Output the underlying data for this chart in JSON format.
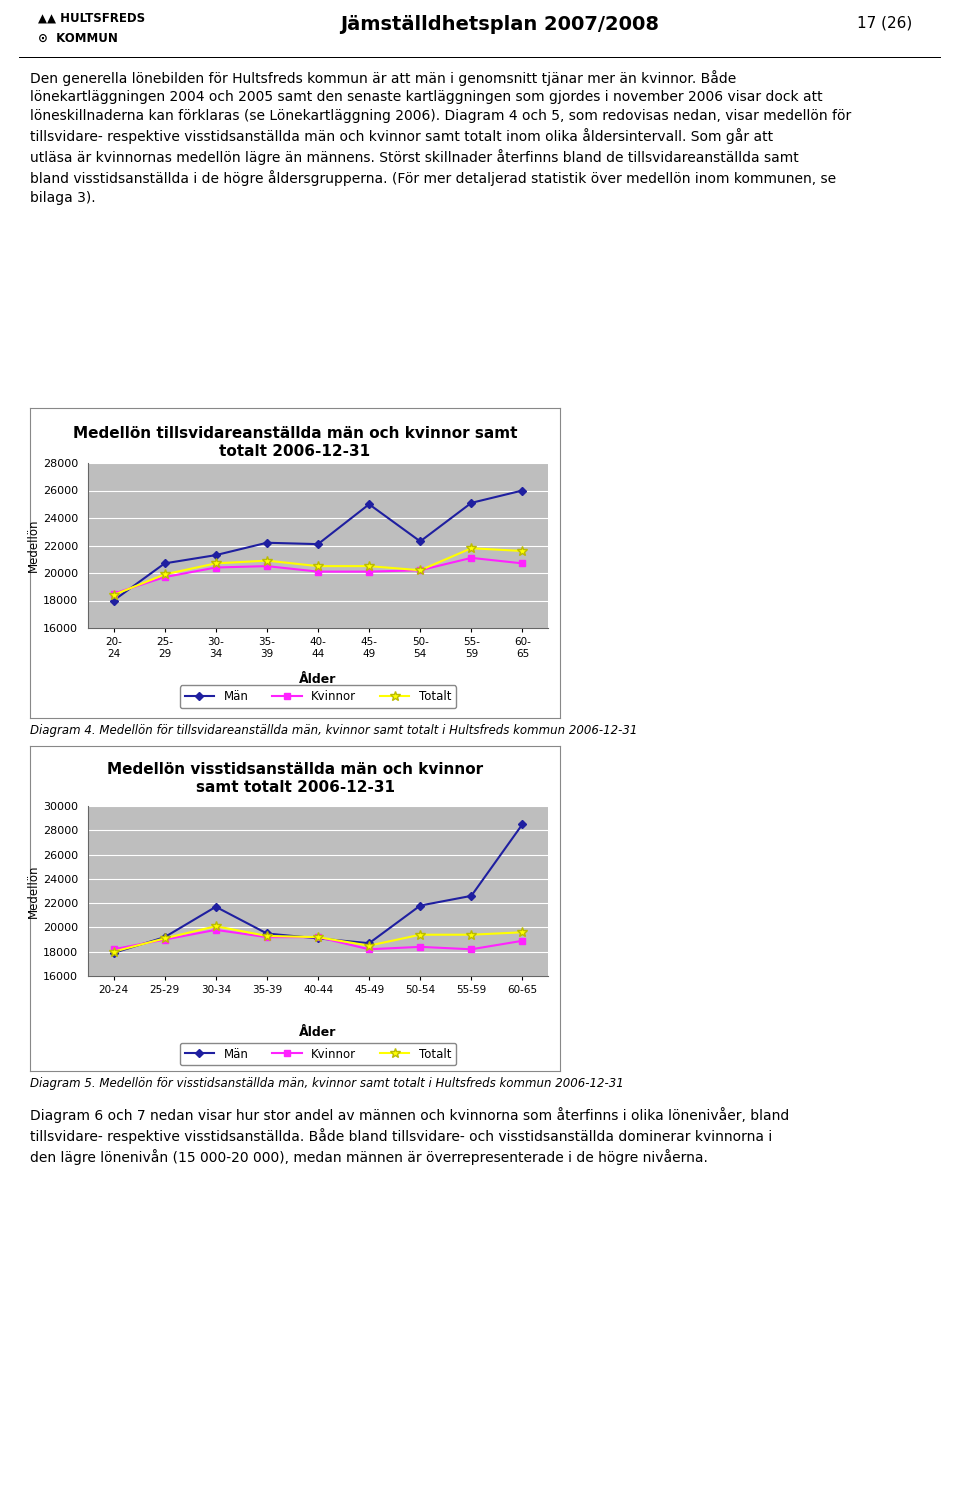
{
  "chart1": {
    "title_line1": "Medellön tillsvidareanställda män och kvinnor samt",
    "title_line2": "totalt 2006-12-31",
    "categories": [
      "20-\n24",
      "25-\n29",
      "30-\n34",
      "35-\n39",
      "40-\n44",
      "45-\n49",
      "50-\n54",
      "55-\n59",
      "60-\n65"
    ],
    "man": [
      18000,
      20700,
      21300,
      22200,
      22100,
      25000,
      22300,
      25100,
      26000
    ],
    "kvinnor": [
      18500,
      19700,
      20400,
      20500,
      20100,
      20100,
      20200,
      21100,
      20700
    ],
    "totalt": [
      18400,
      19900,
      20700,
      20900,
      20500,
      20500,
      20200,
      21800,
      21600
    ],
    "ylim": [
      16000,
      28000
    ],
    "yticks": [
      16000,
      18000,
      20000,
      22000,
      24000,
      26000,
      28000
    ],
    "ylabel": "Medellön",
    "xlabel": "Ålder",
    "man_color": "#1F1FA0",
    "kvinnor_color": "#FF22FF",
    "totalt_color": "#FFFF00",
    "totalt_edge": "#BBBB00",
    "bg_color": "#BEBEBE"
  },
  "chart2": {
    "title_line1": "Medellön visstidsanställda män och kvinnor",
    "title_line2": "samt totalt 2006-12-31",
    "categories": [
      "20-24",
      "25-29",
      "30-34",
      "35-39",
      "40-44",
      "45-49",
      "50-54",
      "55-59",
      "60-65"
    ],
    "man": [
      17900,
      19200,
      21700,
      19500,
      19100,
      18700,
      21800,
      22600,
      28500
    ],
    "kvinnor": [
      18200,
      19000,
      19800,
      19200,
      19200,
      18200,
      18400,
      18200,
      18900
    ],
    "totalt": [
      18000,
      19100,
      20100,
      19300,
      19200,
      18500,
      19400,
      19400,
      19600
    ],
    "ylim": [
      16000,
      30000
    ],
    "yticks": [
      16000,
      18000,
      20000,
      22000,
      24000,
      26000,
      28000,
      30000
    ],
    "ylabel": "Medellön",
    "xlabel": "Ålder",
    "man_color": "#1F1FA0",
    "kvinnor_color": "#FF22FF",
    "totalt_color": "#FFFF00",
    "totalt_edge": "#BBBB00",
    "bg_color": "#BEBEBE"
  },
  "page_bg": "#FFFFFF",
  "header_title": "Jämställdhetsplan 2007/2008",
  "header_page": "17 (26)",
  "intro_text": "Den generella lönebilden för Hultsfreds kommun är att män i genomsnitt tjänar mer än kvinnor. Både lönekartläggningen 2004 och 2005 samt den senaste kartläggningen som gjordes i november 2006 visar dock att löneskillnaderna kan förklaras (se Lönekartläggning 2006). Diagram 4 och 5, som redovisas nedan, visar medellön för tillsvidare- respektive visstidsanställda män och kvinnor samt totalt inom olika åldersintervall. Som går att utläsa är kvinnornas medellön lägre än männens. Störst skillnader återfinns bland de tillsvidareanställda samt bland visstidsanställda i de högre åldersgrupperna. (För mer detaljerad statistik över medellön inom kommunen, se bilaga 3).",
  "caption1": "Diagram 4. Medellön för tillsvidareanställda män, kvinnor samt totalt i Hultsfreds kommun 2006-12-31",
  "caption2": "Diagram 5. Medellön för visstidsanställda män, kvinnor samt totalt i Hultsfreds kommun 2006-12-31",
  "outro_text": "Diagram 6 och 7 nedan visar hur stor andel av männen och kvinnorna som återfinns i olika lönenivåer, bland tillsvidare- respektive visstidsanställda. Både bland tillsvidare- och visstidsanställda dominerar kvinnorna i den lägre lönenivån (15 000-20 000), medan männen är överrepresenterade i de högre nivåerna.",
  "legend_man": "Män",
  "legend_kvinnor": "Kvinnor",
  "legend_totalt": "Totalt"
}
